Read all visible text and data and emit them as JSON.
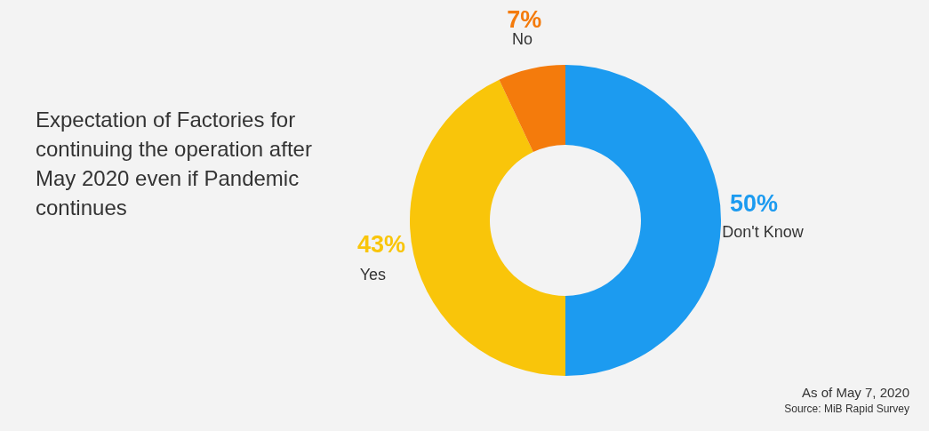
{
  "chart_data": {
    "type": "donut",
    "title": "Expectation of Factories for continuing the operation after May 2020 even if Pandemic continues",
    "categories": [
      "Don't Know",
      "Yes",
      "No"
    ],
    "values": [
      50,
      43,
      7
    ],
    "colors": [
      "#1c9bf0",
      "#f9c50a",
      "#f47b0c"
    ],
    "value_labels": [
      "50%",
      "43%",
      "7%"
    ],
    "annotations": [
      "As of May 7, 2020",
      "Source: MiB Rapid Survey"
    ]
  }
}
